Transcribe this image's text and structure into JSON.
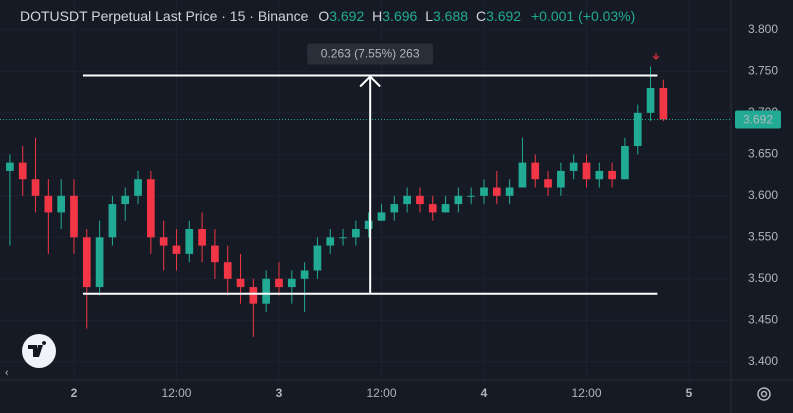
{
  "header": {
    "symbol": "DOTUSDT Perpetual Last Price · 15 · Binance",
    "o_label": "O",
    "o": "3.692",
    "h_label": "H",
    "h": "3.696",
    "l_label": "L",
    "l": "3.688",
    "c_label": "C",
    "c": "3.692",
    "change": "+0.001 (+0.03%)"
  },
  "chart_data": {
    "type": "candlestick",
    "x": [
      -7.5,
      -6,
      -4.5,
      -3,
      -1.5,
      0,
      1.5,
      3,
      4.5,
      6,
      7.5,
      9,
      10.5,
      12,
      13.5,
      15,
      16.5,
      18,
      19.5,
      21,
      22.5,
      24,
      25.5,
      27,
      28.5,
      30,
      31.5,
      33,
      34.5,
      36,
      37.5,
      39,
      40.5,
      42,
      43.5,
      45,
      46.5,
      48,
      49.5,
      51,
      52.5,
      54,
      55.5,
      57,
      58.5,
      60,
      61.5,
      63,
      64.5,
      66,
      67.5,
      69
    ],
    "open": [
      3.63,
      3.64,
      3.62,
      3.6,
      3.58,
      3.6,
      3.55,
      3.49,
      3.55,
      3.59,
      3.6,
      3.62,
      3.55,
      3.54,
      3.53,
      3.56,
      3.54,
      3.52,
      3.5,
      3.49,
      3.47,
      3.5,
      3.49,
      3.5,
      3.51,
      3.54,
      3.55,
      3.55,
      3.56,
      3.57,
      3.58,
      3.59,
      3.6,
      3.59,
      3.58,
      3.59,
      3.6,
      3.6,
      3.61,
      3.6,
      3.61,
      3.64,
      3.62,
      3.61,
      3.63,
      3.64,
      3.62,
      3.63,
      3.62,
      3.66,
      3.7,
      3.73
    ],
    "high": [
      3.65,
      3.66,
      3.67,
      3.62,
      3.62,
      3.62,
      3.56,
      3.57,
      3.6,
      3.61,
      3.63,
      3.63,
      3.57,
      3.56,
      3.57,
      3.58,
      3.56,
      3.54,
      3.53,
      3.5,
      3.51,
      3.52,
      3.51,
      3.52,
      3.55,
      3.56,
      3.56,
      3.57,
      3.58,
      3.59,
      3.6,
      3.61,
      3.61,
      3.6,
      3.6,
      3.61,
      3.61,
      3.62,
      3.63,
      3.62,
      3.67,
      3.65,
      3.63,
      3.64,
      3.65,
      3.65,
      3.64,
      3.64,
      3.67,
      3.71,
      3.756,
      3.74
    ],
    "low": [
      3.54,
      3.6,
      3.58,
      3.53,
      3.56,
      3.53,
      3.44,
      3.48,
      3.54,
      3.57,
      3.59,
      3.53,
      3.51,
      3.51,
      3.52,
      3.52,
      3.5,
      3.48,
      3.47,
      3.43,
      3.46,
      3.48,
      3.47,
      3.46,
      3.5,
      3.53,
      3.54,
      3.54,
      3.55,
      3.57,
      3.57,
      3.58,
      3.58,
      3.57,
      3.58,
      3.58,
      3.59,
      3.59,
      3.59,
      3.59,
      3.61,
      3.61,
      3.6,
      3.6,
      3.62,
      3.61,
      3.61,
      3.61,
      3.62,
      3.65,
      3.69,
      3.69
    ],
    "close": [
      3.64,
      3.62,
      3.6,
      3.58,
      3.6,
      3.55,
      3.49,
      3.55,
      3.59,
      3.6,
      3.62,
      3.55,
      3.54,
      3.53,
      3.56,
      3.54,
      3.52,
      3.5,
      3.49,
      3.47,
      3.5,
      3.49,
      3.5,
      3.51,
      3.54,
      3.55,
      3.55,
      3.56,
      3.57,
      3.58,
      3.59,
      3.6,
      3.59,
      3.58,
      3.59,
      3.6,
      3.6,
      3.61,
      3.6,
      3.61,
      3.64,
      3.62,
      3.61,
      3.63,
      3.64,
      3.62,
      3.63,
      3.62,
      3.66,
      3.7,
      3.73,
      3.692
    ],
    "up_color": "#22ab94",
    "down_color": "#f23645",
    "xlim": [
      -8.66,
      76.8
    ],
    "xticks": [
      {
        "value": 0,
        "label": "2"
      },
      {
        "value": 12,
        "label": "12:00"
      },
      {
        "value": 24,
        "label": "3"
      },
      {
        "value": 36,
        "label": "12:00"
      },
      {
        "value": 48,
        "label": "4"
      },
      {
        "value": 60,
        "label": "12:00"
      },
      {
        "value": 72,
        "label": "5"
      }
    ],
    "ylim": [
      3.378,
      3.836
    ],
    "yticks": [
      {
        "value": 3.4,
        "label": "3.400"
      },
      {
        "value": 3.45,
        "label": "3.450"
      },
      {
        "value": 3.5,
        "label": "3.500"
      },
      {
        "value": 3.55,
        "label": "3.550"
      },
      {
        "value": 3.6,
        "label": "3.600"
      },
      {
        "value": 3.65,
        "label": "3.650"
      },
      {
        "value": 3.7,
        "label": "3.700"
      },
      {
        "value": 3.75,
        "label": "3.750"
      },
      {
        "value": 3.8,
        "label": "3.800"
      }
    ],
    "grid": true,
    "last_price": {
      "value": 3.692,
      "label": "3.692"
    },
    "measure": {
      "label": "0.263 (7.55%) 263",
      "from": 3.482,
      "to": 3.745,
      "x": [
        1.05,
        68.3
      ]
    }
  }
}
